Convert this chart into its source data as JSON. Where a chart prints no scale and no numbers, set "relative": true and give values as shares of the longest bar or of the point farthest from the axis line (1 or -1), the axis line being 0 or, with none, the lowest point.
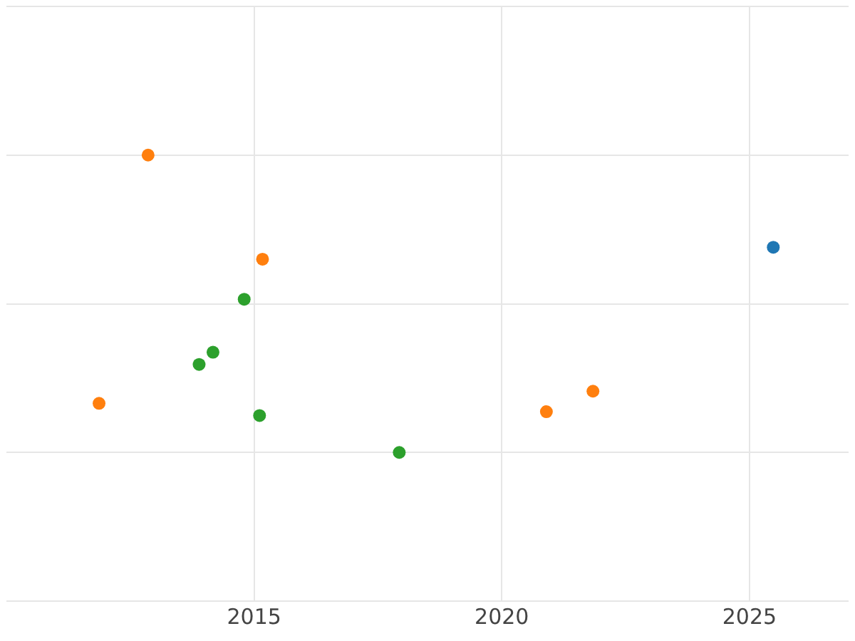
{
  "chart_data": {
    "type": "scatter",
    "relative": true,
    "xlim": [
      2010,
      2027
    ],
    "xticks": [
      2015,
      2020,
      2025
    ],
    "grid": true,
    "legend": false,
    "marker": "circle",
    "series": [
      {
        "color": "#1f77b4",
        "x": [
          2025.48
        ],
        "values": [
          0.69
        ]
      },
      {
        "color": "#ff7f0e",
        "x": [
          2012.86,
          2015.17,
          2011.87,
          2020.9,
          2021.84
        ],
        "values": [
          1,
          0.65,
          0.165,
          0.137,
          0.206
        ]
      },
      {
        "color": "#2ca02c",
        "x": [
          2014.8,
          2014.17,
          2013.89,
          2015.11,
          2017.93
        ],
        "values": [
          0.515,
          0.337,
          0.296,
          0.124,
          0
        ]
      }
    ]
  }
}
